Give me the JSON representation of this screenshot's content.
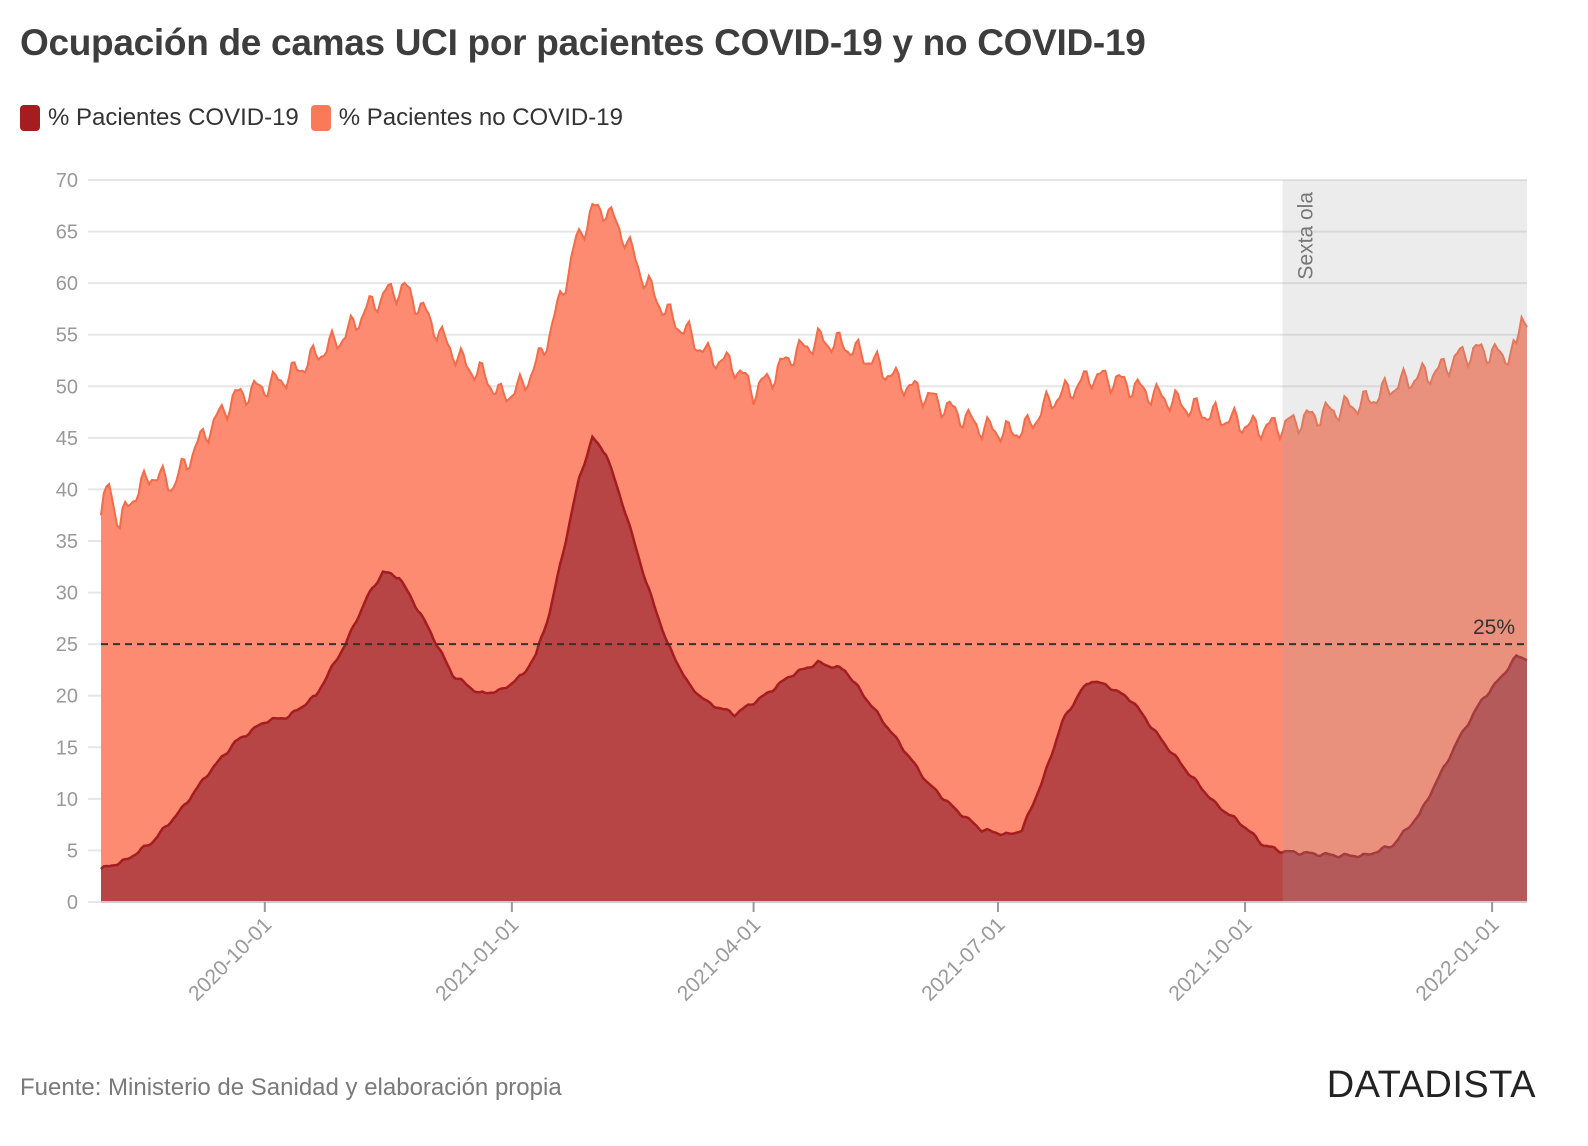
{
  "title": "Ocupación de camas UCI por pacientes COVID-19 y no COVID-19",
  "legend": [
    {
      "label": "% Pacientes COVID-19",
      "color": "#a51d1f"
    },
    {
      "label": "% Pacientes no COVID-19",
      "color": "#f87a58"
    }
  ],
  "source": "Fuente: Ministerio de Sanidad y elaboración propia",
  "brand": "DATADISTA",
  "chart_data": {
    "type": "area",
    "title": "Ocupación de camas UCI por pacientes COVID-19 y no COVID-19",
    "x_start": "2020-08-01",
    "x_end": "2022-01-14",
    "ylim": [
      0,
      70
    ],
    "y_ticks": [
      "0",
      "5",
      "10",
      "15",
      "20",
      "25",
      "30",
      "35",
      "40",
      "45",
      "50",
      "55",
      "60",
      "65",
      "70"
    ],
    "x_ticks": [
      {
        "label": "2020-10-01",
        "date": "2020-10-01"
      },
      {
        "label": "2021-01-01",
        "date": "2021-01-01"
      },
      {
        "label": "2021-04-01",
        "date": "2021-04-01"
      },
      {
        "label": "2021-07-01",
        "date": "2021-07-01"
      },
      {
        "label": "2021-10-01",
        "date": "2021-10-01"
      },
      {
        "label": "2022-01-01",
        "date": "2022-01-01"
      }
    ],
    "series": [
      {
        "name": "% Pacientes COVID-19",
        "color": "#a51d1f",
        "fill": "#b84546",
        "points": [
          [
            "2020-08-01",
            3.2
          ],
          [
            "2020-08-10",
            4.0
          ],
          [
            "2020-08-20",
            5.8
          ],
          [
            "2020-08-31",
            9.0
          ],
          [
            "2020-09-10",
            12.5
          ],
          [
            "2020-09-20",
            15.5
          ],
          [
            "2020-10-01",
            17.5
          ],
          [
            "2020-10-10",
            18.0
          ],
          [
            "2020-10-20",
            20.0
          ],
          [
            "2020-10-31",
            25.0
          ],
          [
            "2020-11-08",
            29.5
          ],
          [
            "2020-11-14",
            32.0
          ],
          [
            "2020-11-20",
            31.5
          ],
          [
            "2020-11-30",
            27.0
          ],
          [
            "2020-12-10",
            22.0
          ],
          [
            "2020-12-20",
            20.2
          ],
          [
            "2020-12-28",
            20.5
          ],
          [
            "2021-01-05",
            22.0
          ],
          [
            "2021-01-10",
            24.0
          ],
          [
            "2021-01-15",
            28.0
          ],
          [
            "2021-01-21",
            35.0
          ],
          [
            "2021-01-26",
            41.0
          ],
          [
            "2021-01-31",
            45.0
          ],
          [
            "2021-02-05",
            43.5
          ],
          [
            "2021-02-12",
            38.0
          ],
          [
            "2021-02-20",
            31.0
          ],
          [
            "2021-02-28",
            25.0
          ],
          [
            "2021-03-08",
            21.0
          ],
          [
            "2021-03-15",
            19.3
          ],
          [
            "2021-03-25",
            18.2
          ],
          [
            "2021-04-05",
            20.0
          ],
          [
            "2021-04-15",
            22.0
          ],
          [
            "2021-04-25",
            23.2
          ],
          [
            "2021-05-05",
            22.5
          ],
          [
            "2021-05-15",
            19.0
          ],
          [
            "2021-05-25",
            15.5
          ],
          [
            "2021-06-05",
            11.5
          ],
          [
            "2021-06-15",
            9.0
          ],
          [
            "2021-06-25",
            7.0
          ],
          [
            "2021-07-05",
            6.5
          ],
          [
            "2021-07-10",
            7.0
          ],
          [
            "2021-07-18",
            12.0
          ],
          [
            "2021-07-25",
            17.5
          ],
          [
            "2021-08-01",
            20.5
          ],
          [
            "2021-08-05",
            21.5
          ],
          [
            "2021-08-12",
            20.8
          ],
          [
            "2021-08-20",
            19.5
          ],
          [
            "2021-08-30",
            16.0
          ],
          [
            "2021-09-10",
            12.5
          ],
          [
            "2021-09-20",
            9.5
          ],
          [
            "2021-09-30",
            7.5
          ],
          [
            "2021-10-08",
            5.5
          ],
          [
            "2021-10-15",
            4.9
          ],
          [
            "2021-10-25",
            4.7
          ],
          [
            "2021-11-05",
            4.5
          ],
          [
            "2021-11-15",
            4.5
          ],
          [
            "2021-11-25",
            5.5
          ],
          [
            "2021-12-05",
            8.5
          ],
          [
            "2021-12-12",
            12.0
          ],
          [
            "2021-12-20",
            16.0
          ],
          [
            "2021-12-28",
            19.5
          ],
          [
            "2022-01-05",
            22.0
          ],
          [
            "2022-01-10",
            23.8
          ],
          [
            "2022-01-14",
            23.6
          ]
        ]
      },
      {
        "name": "% Pacientes no COVID-19",
        "color": "#f36b48",
        "fill": "#fc8b71",
        "points": [
          [
            "2020-08-01",
            37.5
          ],
          [
            "2020-08-04",
            40.5
          ],
          [
            "2020-08-08",
            36.5
          ],
          [
            "2020-08-12",
            39.0
          ],
          [
            "2020-08-20",
            41.5
          ],
          [
            "2020-08-28",
            40.5
          ],
          [
            "2020-09-05",
            44.0
          ],
          [
            "2020-09-12",
            46.5
          ],
          [
            "2020-09-20",
            49.0
          ],
          [
            "2020-10-01",
            50.0
          ],
          [
            "2020-10-10",
            51.0
          ],
          [
            "2020-10-20",
            53.0
          ],
          [
            "2020-10-31",
            55.0
          ],
          [
            "2020-11-08",
            57.5
          ],
          [
            "2020-11-15",
            59.0
          ],
          [
            "2020-11-22",
            59.5
          ],
          [
            "2020-11-30",
            57.0
          ],
          [
            "2020-12-08",
            54.0
          ],
          [
            "2020-12-15",
            52.0
          ],
          [
            "2020-12-22",
            51.0
          ],
          [
            "2020-12-28",
            49.0
          ],
          [
            "2021-01-05",
            50.0
          ],
          [
            "2021-01-12",
            53.0
          ],
          [
            "2021-01-18",
            57.5
          ],
          [
            "2021-01-25",
            64.0
          ],
          [
            "2021-01-31",
            67.0
          ],
          [
            "2021-02-05",
            67.2
          ],
          [
            "2021-02-12",
            64.5
          ],
          [
            "2021-02-20",
            60.0
          ],
          [
            "2021-02-28",
            57.0
          ],
          [
            "2021-03-08",
            55.0
          ],
          [
            "2021-03-15",
            53.0
          ],
          [
            "2021-03-25",
            52.0
          ],
          [
            "2021-04-01",
            49.5
          ],
          [
            "2021-04-08",
            51.0
          ],
          [
            "2021-04-15",
            53.0
          ],
          [
            "2021-04-25",
            54.5
          ],
          [
            "2021-05-05",
            54.0
          ],
          [
            "2021-05-15",
            52.5
          ],
          [
            "2021-05-25",
            50.5
          ],
          [
            "2021-06-05",
            49.0
          ],
          [
            "2021-06-15",
            47.5
          ],
          [
            "2021-06-25",
            46.0
          ],
          [
            "2021-07-05",
            45.5
          ],
          [
            "2021-07-12",
            46.0
          ],
          [
            "2021-07-20",
            48.5
          ],
          [
            "2021-07-30",
            50.0
          ],
          [
            "2021-08-05",
            51.0
          ],
          [
            "2021-08-15",
            50.5
          ],
          [
            "2021-08-25",
            49.5
          ],
          [
            "2021-09-05",
            48.5
          ],
          [
            "2021-09-15",
            47.5
          ],
          [
            "2021-09-25",
            46.8
          ],
          [
            "2021-10-05",
            46.0
          ],
          [
            "2021-10-15",
            46.2
          ],
          [
            "2021-10-25",
            47.0
          ],
          [
            "2021-11-05",
            47.8
          ],
          [
            "2021-11-15",
            48.5
          ],
          [
            "2021-11-25",
            50.0
          ],
          [
            "2021-12-05",
            51.0
          ],
          [
            "2021-12-12",
            51.5
          ],
          [
            "2021-12-20",
            53.0
          ],
          [
            "2021-12-28",
            53.5
          ],
          [
            "2022-01-05",
            53.0
          ],
          [
            "2022-01-10",
            53.5
          ],
          [
            "2022-01-12",
            56.8
          ],
          [
            "2022-01-14",
            56.8
          ]
        ]
      }
    ],
    "reference_line": {
      "value": 25,
      "label": "25%"
    },
    "shaded_region": {
      "start": "2021-10-15",
      "end": "2022-01-14",
      "label": "Sexta ola"
    }
  }
}
